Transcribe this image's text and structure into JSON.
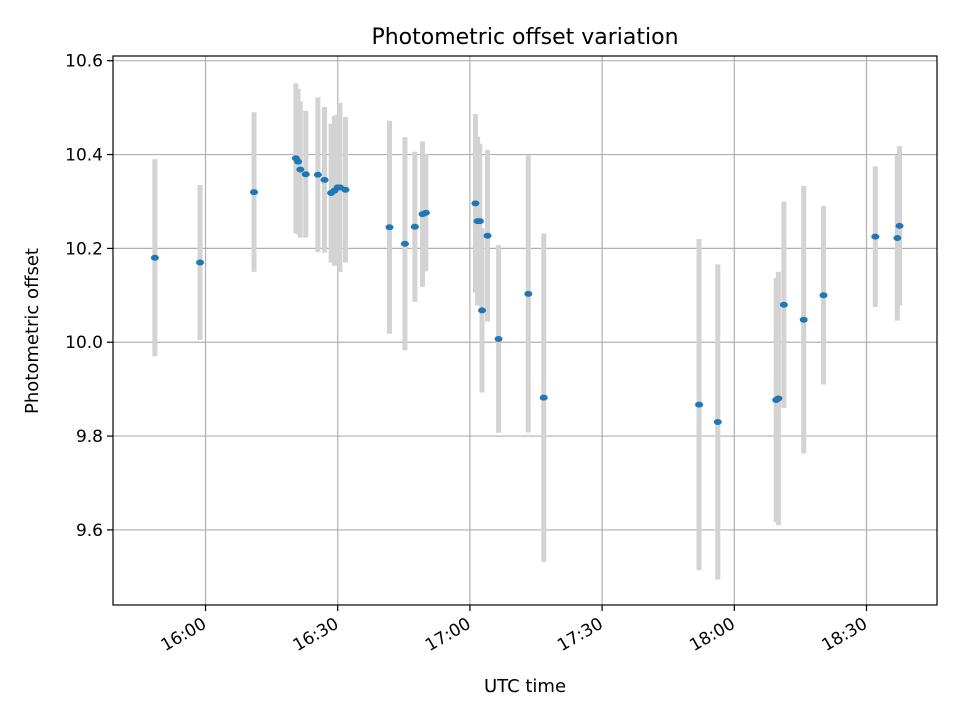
{
  "chart_data": {
    "type": "scatter",
    "title": "Photometric offset variation",
    "xlabel": "UTC time",
    "ylabel": "Photometric offset",
    "xlim": [
      "15:39",
      "18:46"
    ],
    "ylim": [
      9.44,
      10.61
    ],
    "x_ticks": [
      "16:00",
      "16:30",
      "17:00",
      "17:30",
      "18:00",
      "18:30"
    ],
    "y_ticks": [
      9.6,
      9.8,
      10.0,
      10.2,
      10.4,
      10.6
    ],
    "y_tick_labels": [
      "9.6",
      "9.8",
      "10.0",
      "10.2",
      "10.4",
      "10.6"
    ],
    "grid": true,
    "colors": {
      "points": "#1f77b4",
      "errorbars": "#d3d3d3",
      "grid": "#b0b0b0"
    },
    "points": [
      {
        "x": "15:48:30",
        "y": 10.18,
        "err": 0.21
      },
      {
        "x": "15:58:45",
        "y": 10.17,
        "err": 0.165
      },
      {
        "x": "16:11:00",
        "y": 10.32,
        "err": 0.17
      },
      {
        "x": "16:20:30",
        "y": 10.392,
        "err": 0.16
      },
      {
        "x": "16:21:00",
        "y": 10.385,
        "err": 0.155
      },
      {
        "x": "16:21:30",
        "y": 10.368,
        "err": 0.145
      },
      {
        "x": "16:22:45",
        "y": 10.358,
        "err": 0.135
      },
      {
        "x": "16:25:30",
        "y": 10.357,
        "err": 0.165
      },
      {
        "x": "16:27:00",
        "y": 10.346,
        "err": 0.155
      },
      {
        "x": "16:28:30",
        "y": 10.318,
        "err": 0.148
      },
      {
        "x": "16:29:15",
        "y": 10.323,
        "err": 0.16
      },
      {
        "x": "16:30:00",
        "y": 10.33,
        "err": 0.155
      },
      {
        "x": "16:30:30",
        "y": 10.33,
        "err": 0.18
      },
      {
        "x": "16:31:45",
        "y": 10.325,
        "err": 0.155
      },
      {
        "x": "16:41:45",
        "y": 10.245,
        "err": 0.227
      },
      {
        "x": "16:45:15",
        "y": 10.21,
        "err": 0.227
      },
      {
        "x": "16:47:30",
        "y": 10.246,
        "err": 0.16
      },
      {
        "x": "16:49:15",
        "y": 10.273,
        "err": 0.155
      },
      {
        "x": "16:50:00",
        "y": 10.276,
        "err": 0.125
      },
      {
        "x": "17:01:15",
        "y": 10.296,
        "err": 0.19
      },
      {
        "x": "17:01:45",
        "y": 10.258,
        "err": 0.18
      },
      {
        "x": "17:02:15",
        "y": 10.258,
        "err": 0.165
      },
      {
        "x": "17:02:45",
        "y": 10.068,
        "err": 0.175
      },
      {
        "x": "17:04:00",
        "y": 10.227,
        "err": 0.183
      },
      {
        "x": "17:06:30",
        "y": 10.007,
        "err": 0.2
      },
      {
        "x": "17:13:15",
        "y": 10.103,
        "err": 0.295
      },
      {
        "x": "17:16:45",
        "y": 9.882,
        "err": 0.35
      },
      {
        "x": "17:52:00",
        "y": 9.867,
        "err": 0.353
      },
      {
        "x": "17:56:15",
        "y": 9.83,
        "err": 0.336
      },
      {
        "x": "18:09:30",
        "y": 9.877,
        "err": 0.26
      },
      {
        "x": "18:10:00",
        "y": 9.88,
        "err": 0.27
      },
      {
        "x": "18:11:15",
        "y": 10.08,
        "err": 0.22
      },
      {
        "x": "18:15:45",
        "y": 10.048,
        "err": 0.285
      },
      {
        "x": "18:20:15",
        "y": 10.1,
        "err": 0.19
      },
      {
        "x": "18:32:00",
        "y": 10.225,
        "err": 0.15
      },
      {
        "x": "18:37:00",
        "y": 10.222,
        "err": 0.176
      },
      {
        "x": "18:37:30",
        "y": 10.248,
        "err": 0.17
      }
    ]
  }
}
